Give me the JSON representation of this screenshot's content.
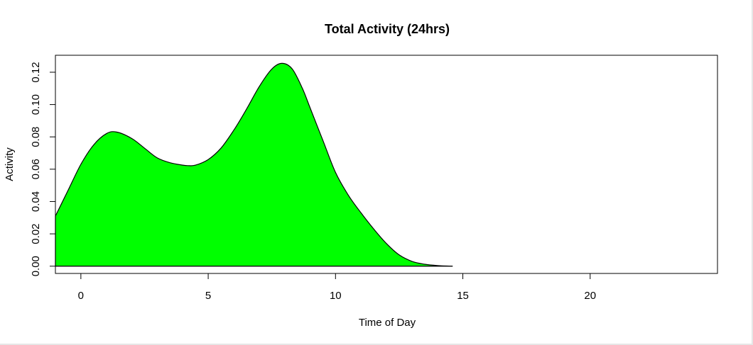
{
  "chart_data": {
    "type": "area",
    "title": "Total Activity (24hrs)",
    "xlabel": "Time of Day",
    "ylabel": "Activity",
    "xlim": [
      -1,
      25
    ],
    "ylim": [
      -0.0045,
      0.1305
    ],
    "x_ticks": [
      0,
      5,
      10,
      15,
      20
    ],
    "y_ticks": [
      0.0,
      0.02,
      0.04,
      0.06,
      0.08,
      0.1,
      0.12
    ],
    "x_tick_labels": [
      "0",
      "5",
      "10",
      "15",
      "20"
    ],
    "y_tick_labels": [
      "0.00",
      "0.02",
      "0.04",
      "0.06",
      "0.08",
      "0.10",
      "0.12"
    ],
    "grid": false,
    "legend": "none",
    "fill_color": "#00ff00",
    "line_color": "#000000",
    "series": [
      {
        "x": [
          -1.0,
          -0.5,
          0.0,
          0.5,
          1.0,
          1.4,
          2.0,
          2.5,
          3.0,
          3.5,
          4.0,
          4.2,
          4.5,
          5.0,
          5.5,
          6.0,
          6.5,
          7.0,
          7.5,
          7.9,
          8.3,
          8.7,
          9.0,
          9.5,
          10.0,
          10.5,
          11.0,
          11.5,
          12.0,
          12.5,
          13.0,
          13.5,
          14.0,
          14.6
        ],
        "y": [
          0.031,
          0.047,
          0.063,
          0.075,
          0.082,
          0.083,
          0.079,
          0.073,
          0.067,
          0.064,
          0.0625,
          0.0622,
          0.0625,
          0.066,
          0.073,
          0.084,
          0.097,
          0.111,
          0.122,
          0.1255,
          0.122,
          0.11,
          0.098,
          0.078,
          0.058,
          0.044,
          0.033,
          0.023,
          0.014,
          0.007,
          0.003,
          0.0012,
          0.0004,
          0.0
        ]
      }
    ]
  }
}
